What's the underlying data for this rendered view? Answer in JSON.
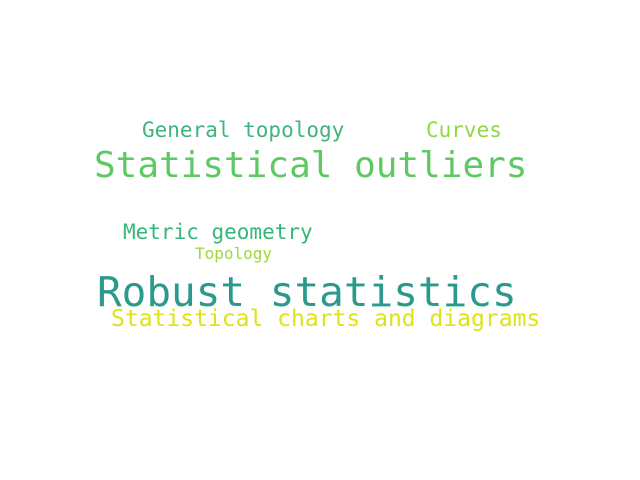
{
  "words": [
    {
      "id": "statistical-outliers",
      "text": "Statistical outliers",
      "color": "#5ec962"
    },
    {
      "id": "robust-statistics",
      "text": "Robust statistics",
      "color": "#2a9a8c"
    },
    {
      "id": "general-topology",
      "text": "General topology",
      "color": "#3fb47c"
    },
    {
      "id": "curves",
      "text": "Curves",
      "color": "#8fd744"
    },
    {
      "id": "metric-geometry",
      "text": "Metric geometry",
      "color": "#35b77a"
    },
    {
      "id": "topology",
      "text": "Topology",
      "color": "#9bd93c"
    },
    {
      "id": "statistical-charts-and-diagrams",
      "text": "Statistical charts and diagrams",
      "color": "#dde318"
    }
  ]
}
